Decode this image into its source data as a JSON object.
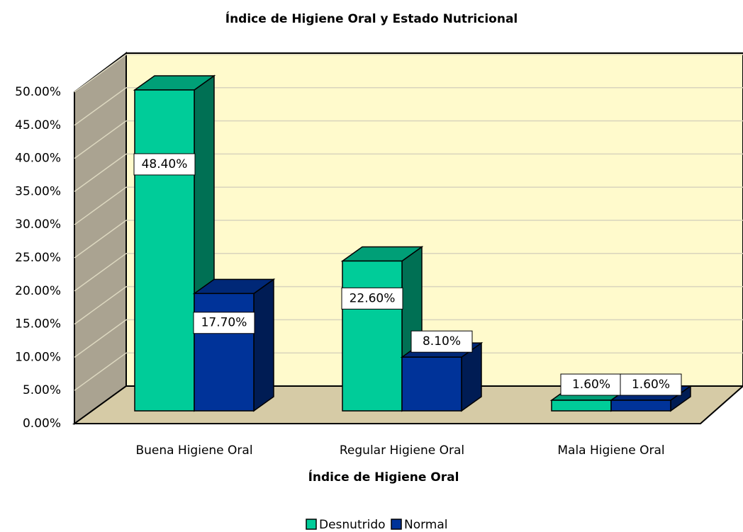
{
  "chart_data": {
    "type": "bar3d",
    "title": "Índice de Higiene Oral y Estado Nutricional",
    "x_label": "Índice de Higiene Oral",
    "categories": [
      "Buena Higiene Oral",
      "Regular Higiene Oral",
      "Mala Higiene Oral"
    ],
    "series": [
      {
        "name": "Desnutrido",
        "color": "#00cc99",
        "values": [
          48.4,
          22.6,
          1.6
        ],
        "value_labels": [
          "48.40%",
          "22.60%",
          "1.60%"
        ]
      },
      {
        "name": "Normal",
        "color": "#003399",
        "values": [
          17.7,
          8.1,
          1.6
        ],
        "value_labels": [
          "17.70%",
          "8.10%",
          "1.60%"
        ]
      }
    ],
    "ylim": [
      0,
      50
    ],
    "yticks": [
      {
        "value": 0,
        "label": "0.00%"
      },
      {
        "value": 5,
        "label": "5.00%"
      },
      {
        "value": 10,
        "label": "10.00%"
      },
      {
        "value": 15,
        "label": "15.00%"
      },
      {
        "value": 20,
        "label": "20.00%"
      },
      {
        "value": 25,
        "label": "25.00%"
      },
      {
        "value": 30,
        "label": "30.00%"
      },
      {
        "value": 35,
        "label": "35.00%"
      },
      {
        "value": 40,
        "label": "40.00%"
      },
      {
        "value": 45,
        "label": "45.00%"
      },
      {
        "value": 50,
        "label": "50.00%"
      }
    ],
    "grid": true,
    "legend": "bottom"
  }
}
